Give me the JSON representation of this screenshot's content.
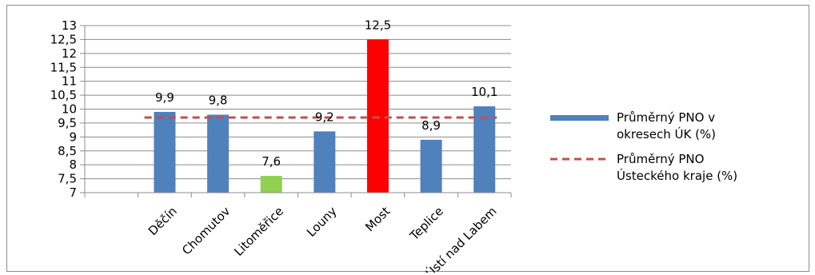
{
  "chart_data": {
    "type": "bar",
    "categories": [
      "Děčín",
      "Chomutov",
      "Litoměřice",
      "Louny",
      "Most",
      "Teplice",
      "Ústí nad Labem"
    ],
    "series": [
      {
        "name": "Průměrný PNO  v okresech ÚK (%)",
        "values": [
          9.9,
          9.8,
          7.6,
          9.2,
          12.5,
          8.9,
          10.1
        ],
        "value_labels": [
          "9,9",
          "9,8",
          "7,6",
          "9,2",
          "12,5",
          "8,9",
          "10,1"
        ],
        "color": "#4f81bd",
        "point_colors": [
          "#4f81bd",
          "#4f81bd",
          "#92d050",
          "#4f81bd",
          "#ff0000",
          "#4f81bd",
          "#4f81bd"
        ]
      },
      {
        "name": "Průměrný PNO Ústeckého kraje  (%)",
        "type": "line",
        "value": 9.7,
        "color": "#c0504d",
        "dash": true
      }
    ],
    "ylim": [
      7,
      13
    ],
    "yticks": [
      7,
      7.5,
      8,
      8.5,
      9,
      9.5,
      10,
      10.5,
      11,
      11.5,
      12,
      12.5,
      13
    ],
    "ytick_labels": [
      "7",
      "7,5",
      "8",
      "8,5",
      "9",
      "9,5",
      "10",
      "10,5",
      "11",
      "11,5",
      "12",
      "12,5",
      "13"
    ],
    "grid": true,
    "legend_position": "right",
    "title": "",
    "xlabel": "",
    "ylabel": ""
  },
  "legend": {
    "bar_line1": "Průměrný PNO  v",
    "bar_line2": "okresech ÚK (%)",
    "line_line1": "Průměrný PNO",
    "line_line2": "Ústeckého kraje  (%)"
  }
}
